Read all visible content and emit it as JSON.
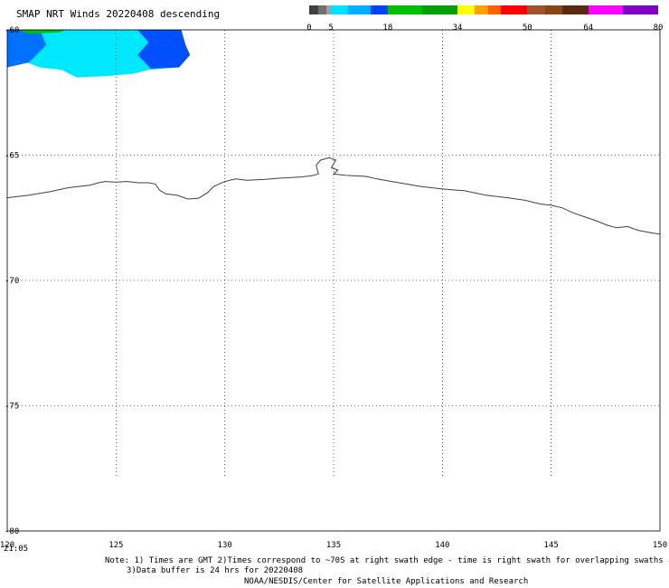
{
  "title": "SMAP NRT Winds  20220408 descending",
  "colorbar": {
    "ticks": [
      {
        "label": "0",
        "value": 0
      },
      {
        "label": "5",
        "value": 5
      },
      {
        "label": "18",
        "value": 18
      },
      {
        "label": "34",
        "value": 34
      },
      {
        "label": "50",
        "value": 50
      },
      {
        "label": "64",
        "value": 64
      },
      {
        "label": "80",
        "value": 80
      }
    ],
    "segments": [
      {
        "from": 0,
        "to": 2,
        "color": "#404040"
      },
      {
        "from": 2,
        "to": 4,
        "color": "#707070"
      },
      {
        "from": 4,
        "to": 5,
        "color": "#a0a0a0"
      },
      {
        "from": 5,
        "to": 9,
        "color": "#00e0ff"
      },
      {
        "from": 9,
        "to": 14,
        "color": "#00b0ff"
      },
      {
        "from": 14,
        "to": 18,
        "color": "#0040ff"
      },
      {
        "from": 18,
        "to": 26,
        "color": "#00c000"
      },
      {
        "from": 26,
        "to": 34,
        "color": "#00a000"
      },
      {
        "from": 34,
        "to": 38,
        "color": "#ffff00"
      },
      {
        "from": 38,
        "to": 41,
        "color": "#ffa000"
      },
      {
        "from": 41,
        "to": 44,
        "color": "#ff6000"
      },
      {
        "from": 44,
        "to": 50,
        "color": "#ff0000"
      },
      {
        "from": 50,
        "to": 54,
        "color": "#a0522d"
      },
      {
        "from": 54,
        "to": 58,
        "color": "#8b4513"
      },
      {
        "from": 58,
        "to": 64,
        "color": "#5a2a10"
      },
      {
        "from": 64,
        "to": 72,
        "color": "#ff00ff"
      },
      {
        "from": 72,
        "to": 80,
        "color": "#8000c0"
      }
    ]
  },
  "map": {
    "lon_range": [
      120,
      150
    ],
    "lat_range": [
      -60,
      -80
    ],
    "lon_ticks": [
      120,
      125,
      130,
      135,
      140,
      145,
      150
    ],
    "lat_ticks": [
      -60,
      -65,
      -70,
      -75,
      -80
    ],
    "lon_labels": [
      "120",
      "125",
      "130",
      "135",
      "140",
      "145",
      "150"
    ],
    "lat_labels": [
      "-60",
      "-65",
      "-70",
      "-75",
      "-80"
    ],
    "time_label": "21:05",
    "coastline_color": "#404040",
    "grid_color": "#000000",
    "coastline": [
      [
        120.0,
        -66.7
      ],
      [
        121.0,
        -66.6
      ],
      [
        122.0,
        -66.45
      ],
      [
        122.8,
        -66.3
      ],
      [
        123.3,
        -66.25
      ],
      [
        123.8,
        -66.2
      ],
      [
        124.2,
        -66.1
      ],
      [
        124.5,
        -66.05
      ],
      [
        125.0,
        -66.08
      ],
      [
        125.5,
        -66.05
      ],
      [
        126.0,
        -66.1
      ],
      [
        126.5,
        -66.1
      ],
      [
        126.8,
        -66.15
      ],
      [
        127.0,
        -66.4
      ],
      [
        127.3,
        -66.55
      ],
      [
        127.8,
        -66.6
      ],
      [
        128.3,
        -66.75
      ],
      [
        128.8,
        -66.72
      ],
      [
        129.2,
        -66.5
      ],
      [
        129.5,
        -66.25
      ],
      [
        130.0,
        -66.05
      ],
      [
        130.5,
        -65.95
      ],
      [
        131.0,
        -66.0
      ],
      [
        131.8,
        -65.97
      ],
      [
        132.5,
        -65.92
      ],
      [
        133.5,
        -65.87
      ],
      [
        134.0,
        -65.82
      ],
      [
        134.3,
        -65.75
      ],
      [
        134.2,
        -65.4
      ],
      [
        134.4,
        -65.2
      ],
      [
        134.8,
        -65.1
      ],
      [
        135.1,
        -65.2
      ],
      [
        134.9,
        -65.5
      ],
      [
        135.2,
        -65.6
      ],
      [
        135.0,
        -65.75
      ],
      [
        135.5,
        -65.8
      ],
      [
        136.5,
        -65.85
      ],
      [
        137.0,
        -65.95
      ],
      [
        138.0,
        -66.1
      ],
      [
        139.0,
        -66.25
      ],
      [
        140.0,
        -66.35
      ],
      [
        141.0,
        -66.42
      ],
      [
        142.0,
        -66.6
      ],
      [
        143.0,
        -66.7
      ],
      [
        143.8,
        -66.8
      ],
      [
        144.5,
        -66.95
      ],
      [
        145.0,
        -67.0
      ],
      [
        145.5,
        -67.1
      ],
      [
        146.0,
        -67.3
      ],
      [
        146.5,
        -67.45
      ],
      [
        147.0,
        -67.6
      ],
      [
        147.6,
        -67.8
      ],
      [
        148.0,
        -67.9
      ],
      [
        148.5,
        -67.85
      ],
      [
        149.0,
        -68.0
      ],
      [
        149.6,
        -68.1
      ],
      [
        150.0,
        -68.15
      ]
    ],
    "swath_polygons": [
      {
        "color": "#00e8ff",
        "points": [
          [
            120.0,
            -60.0
          ],
          [
            128.0,
            -60.0
          ],
          [
            128.2,
            -61.0
          ],
          [
            127.8,
            -61.5
          ],
          [
            126.5,
            -61.6
          ],
          [
            125.8,
            -61.75
          ],
          [
            124.5,
            -61.85
          ],
          [
            123.2,
            -61.9
          ],
          [
            122.5,
            -61.6
          ],
          [
            121.5,
            -61.5
          ],
          [
            120.0,
            -61.0
          ]
        ]
      },
      {
        "color": "#0050ff",
        "points": [
          [
            126.0,
            -60.0
          ],
          [
            128.0,
            -60.0
          ],
          [
            128.2,
            -60.6
          ],
          [
            128.4,
            -61.0
          ],
          [
            127.9,
            -61.5
          ],
          [
            126.6,
            -61.55
          ],
          [
            126.0,
            -61.0
          ],
          [
            126.5,
            -60.5
          ]
        ]
      },
      {
        "color": "#0070ff",
        "points": [
          [
            120.0,
            -60.0
          ],
          [
            121.5,
            -60.0
          ],
          [
            121.8,
            -60.6
          ],
          [
            121.0,
            -61.3
          ],
          [
            120.0,
            -61.5
          ]
        ]
      },
      {
        "color": "#00c000",
        "points": [
          [
            120.5,
            -60.0
          ],
          [
            122.7,
            -60.0
          ],
          [
            122.4,
            -60.1
          ],
          [
            121.0,
            -60.15
          ]
        ]
      }
    ]
  },
  "notes": {
    "line1": "Note: 1) Times are GMT 2)Times correspond to ~70S at right swath edge - time is right swath for overlapping swaths at ~70S",
    "line2": "3)Data buffer is 24 hrs for 20220408",
    "line3": "NOAA/NESDIS/Center for Satellite Applications and Research"
  }
}
